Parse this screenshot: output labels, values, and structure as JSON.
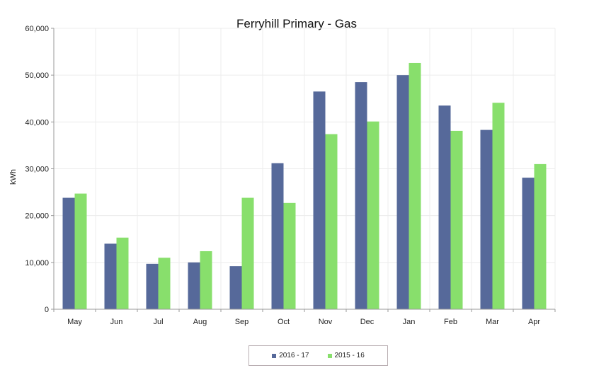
{
  "colors": {
    "series_2016_17": "#56699a",
    "series_2015_16": "#88df6c",
    "grid": "#ececec",
    "axis": "#9a9a9a"
  },
  "chart_data": {
    "type": "bar",
    "title": "Ferryhill Primary  - Gas",
    "xlabel": "",
    "ylabel": "kWh",
    "ylim": [
      0,
      60000
    ],
    "yticks": [
      0,
      10000,
      20000,
      30000,
      40000,
      50000,
      60000
    ],
    "ytick_labels": [
      "0",
      "10,000",
      "20,000",
      "30,000",
      "40,000",
      "50,000",
      "60,000"
    ],
    "grid": true,
    "legend_position": "bottom-center",
    "categories": [
      "May",
      "Jun",
      "Jul",
      "Aug",
      "Sep",
      "Oct",
      "Nov",
      "Dec",
      "Jan",
      "Feb",
      "Mar",
      "Apr"
    ],
    "series": [
      {
        "name": "2016 - 17",
        "color": "#56699a",
        "values": [
          23800,
          14000,
          9700,
          10000,
          9200,
          31200,
          46500,
          48500,
          50000,
          43500,
          38300,
          28100
        ]
      },
      {
        "name": "2015 - 16",
        "color": "#88df6c",
        "values": [
          24700,
          15300,
          11000,
          12400,
          23800,
          22700,
          37400,
          40100,
          52600,
          38100,
          44100,
          31000
        ]
      }
    ]
  }
}
